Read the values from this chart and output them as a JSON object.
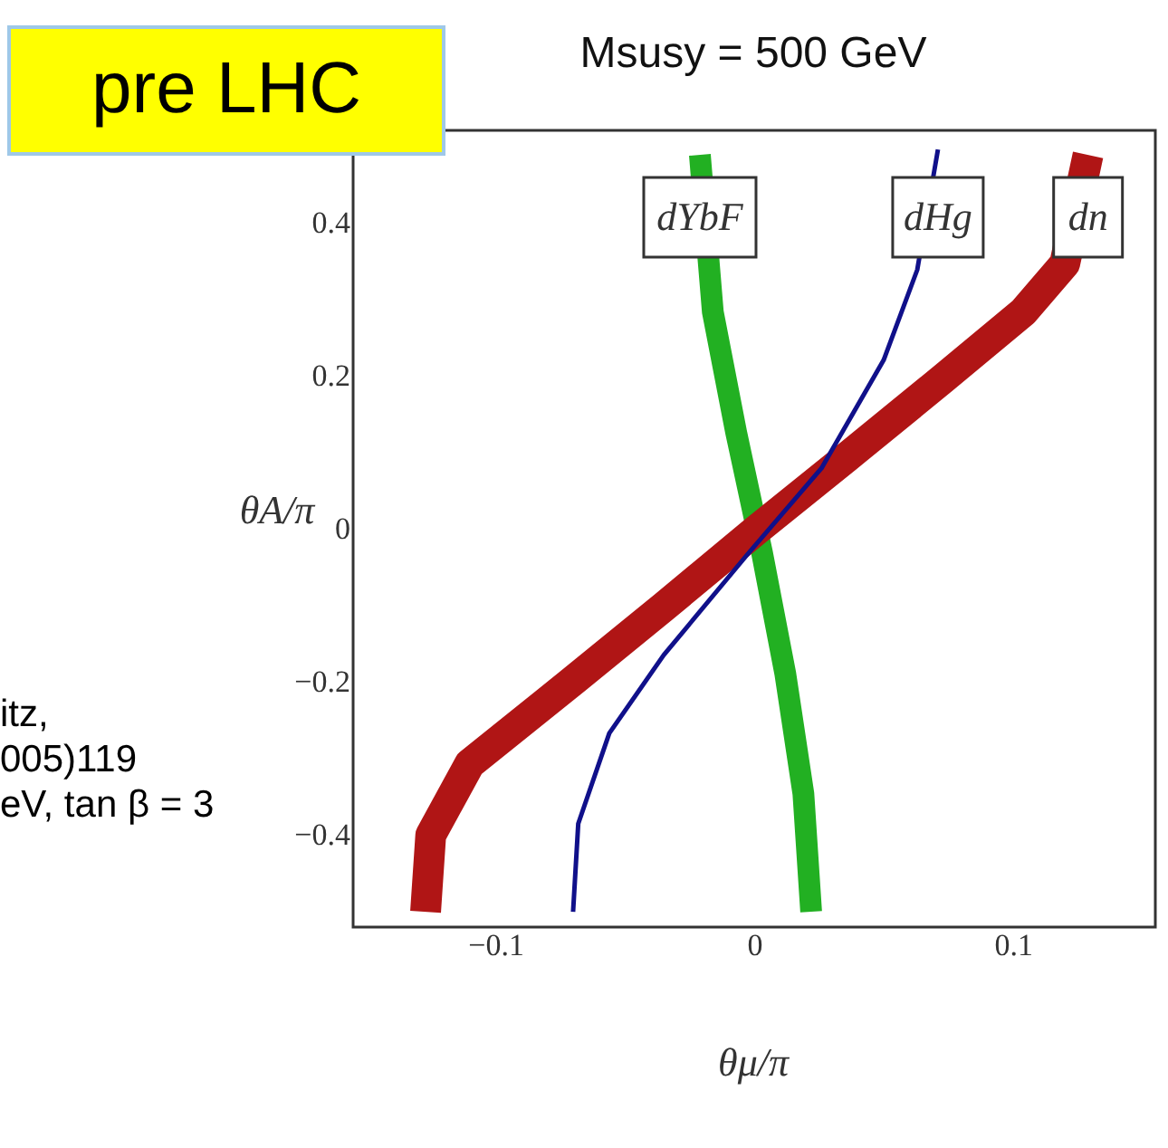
{
  "chart_data": {
    "type": "line",
    "title": "Msusy = 500 GeV",
    "xlabel": "θμ/π",
    "ylabel": "θA/π",
    "annotations": [
      "pre LHC",
      "itz,",
      "005)119",
      "eV, tan β = 3"
    ],
    "series": [
      {
        "name": "dYbF",
        "color": "#22b022",
        "x": [
          0.022,
          0.019,
          0.012,
          0.003,
          -0.007,
          -0.016,
          -0.021
        ],
        "values": [
          -0.5,
          -0.346,
          -0.189,
          -0.031,
          0.126,
          0.283,
          0.488
        ]
      },
      {
        "name": "dn",
        "color": "#b01515",
        "x": [
          -0.127,
          -0.125,
          -0.11,
          -0.072,
          -0.035,
          0.0,
          0.036,
          0.073,
          0.104,
          0.12,
          0.129
        ],
        "values": [
          -0.5,
          -0.4,
          -0.307,
          -0.204,
          -0.102,
          -0.004,
          0.094,
          0.196,
          0.283,
          0.346,
          0.488
        ]
      },
      {
        "name": "dHg",
        "color": "#10108a",
        "x": [
          -0.07,
          -0.068,
          -0.056,
          -0.035,
          -0.002,
          0.026,
          0.05,
          0.063,
          0.071
        ],
        "values": [
          -0.5,
          -0.385,
          -0.267,
          -0.165,
          -0.031,
          0.079,
          0.22,
          0.338,
          0.495
        ]
      }
    ],
    "xlim": [
      -0.155,
      0.155
    ],
    "ylim": [
      -0.52,
      0.52
    ],
    "xticks": [
      {
        "value": -0.1,
        "label": "−0.1"
      },
      0,
      0.1
    ],
    "yticks": [
      {
        "value": -0.4,
        "label": "−0.4"
      },
      {
        "value": -0.2,
        "label": "−0.2"
      },
      0,
      0.2,
      0.4
    ],
    "grid": false,
    "marker": "none",
    "line_style": "solid"
  }
}
